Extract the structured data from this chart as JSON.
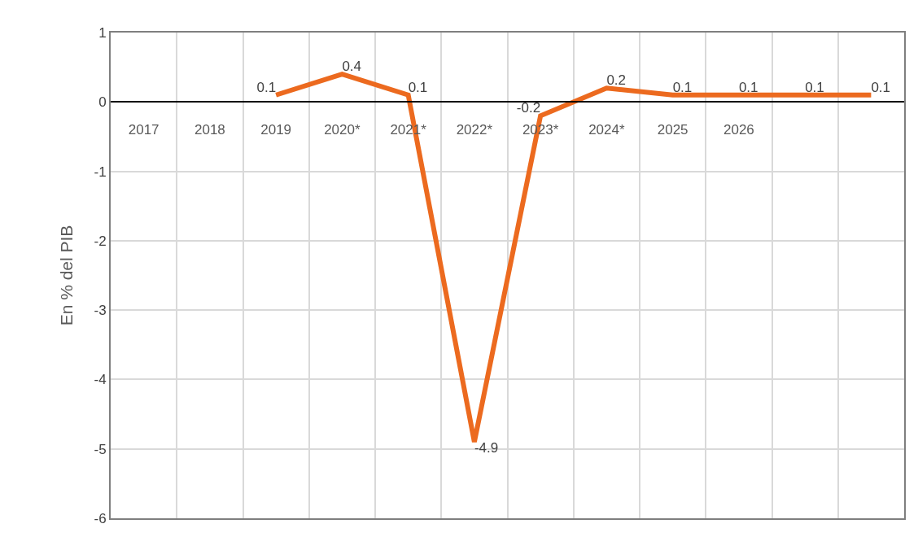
{
  "chart_data": {
    "type": "line",
    "ylabel": "En % del PIB",
    "categories": [
      "2017",
      "2018",
      "2019",
      "2020*",
      "2021*",
      "2022*",
      "2023*",
      "2024*",
      "2025",
      "2026",
      null,
      null
    ],
    "series": [
      {
        "color": "#ec6a1f",
        "values": [
          null,
          null,
          0.1,
          0.4,
          0.1,
          -4.9,
          -0.2,
          0.2,
          0.1,
          0.1,
          0.1,
          0.1
        ]
      }
    ],
    "ylim": [
      -6,
      1
    ],
    "yticks": [
      -6,
      -5,
      -4,
      -3,
      -2,
      -1,
      0,
      1
    ],
    "grid": true,
    "marker": "none",
    "line_style": "solid",
    "data_labels": true
  }
}
